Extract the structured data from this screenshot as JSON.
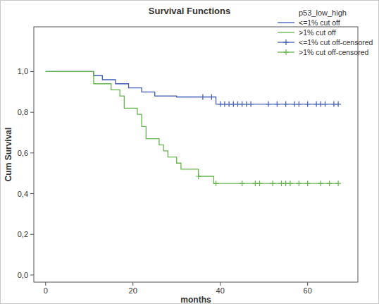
{
  "chart_data": {
    "type": "line",
    "title": "Survival Functions",
    "x_label": "months",
    "y_label": "Cum Survival",
    "legend_title": "p53_low_high",
    "legend": "upper right",
    "grid": false,
    "xlim": [
      -2.7,
      71.5
    ],
    "ylim": [
      -0.035,
      1.22
    ],
    "xticks": [
      0,
      20,
      40,
      60
    ],
    "yticks": [
      {
        "value": 0.0,
        "label": "0,0"
      },
      {
        "value": 0.2,
        "label": "0,2"
      },
      {
        "value": 0.4,
        "label": "0,4"
      },
      {
        "value": 0.6,
        "label": "0,6"
      },
      {
        "value": 0.8,
        "label": "0,8"
      },
      {
        "value": 1.0,
        "label": "1,0"
      }
    ],
    "series": [
      {
        "name": "<=1% cut off",
        "type": "line",
        "line_style": "step",
        "color": "#3f5bb5",
        "x": [
          0,
          11,
          13,
          16,
          19,
          22,
          25,
          30,
          39,
          67
        ],
        "values": [
          1.0,
          0.98,
          0.96,
          0.94,
          0.92,
          0.9,
          0.88,
          0.875,
          0.84,
          0.84
        ]
      },
      {
        "name": ">1% cut off",
        "type": "line",
        "line_style": "step",
        "color": "#63b44a",
        "x": [
          0,
          11,
          15,
          17,
          18,
          21,
          22,
          23,
          26,
          27,
          28,
          30,
          31,
          35,
          38.5,
          67
        ],
        "values": [
          1.0,
          0.94,
          0.91,
          0.88,
          0.82,
          0.79,
          0.73,
          0.67,
          0.64,
          0.61,
          0.58,
          0.55,
          0.52,
          0.485,
          0.45,
          0.45
        ]
      },
      {
        "name": "<=1% cut off-censored",
        "type": "scatter",
        "marker": "plus",
        "color": "#3f5bb5",
        "x": [
          36,
          38,
          40,
          41,
          42,
          43,
          44,
          45,
          46,
          47,
          51,
          53,
          55,
          57,
          58,
          60,
          62,
          63,
          64,
          66,
          67
        ],
        "values": [
          0.875,
          0.875,
          0.84,
          0.84,
          0.84,
          0.84,
          0.84,
          0.84,
          0.84,
          0.84,
          0.84,
          0.84,
          0.84,
          0.84,
          0.84,
          0.84,
          0.84,
          0.84,
          0.84,
          0.84,
          0.84
        ]
      },
      {
        "name": ">1% cut off-censored",
        "type": "scatter",
        "marker": "plus",
        "color": "#63b44a",
        "x": [
          35,
          39,
          45,
          48,
          49,
          52,
          54,
          55,
          56,
          58,
          60,
          63,
          65,
          67
        ],
        "values": [
          0.485,
          0.45,
          0.45,
          0.45,
          0.45,
          0.45,
          0.45,
          0.45,
          0.45,
          0.45,
          0.45,
          0.45,
          0.45,
          0.45
        ]
      }
    ]
  }
}
